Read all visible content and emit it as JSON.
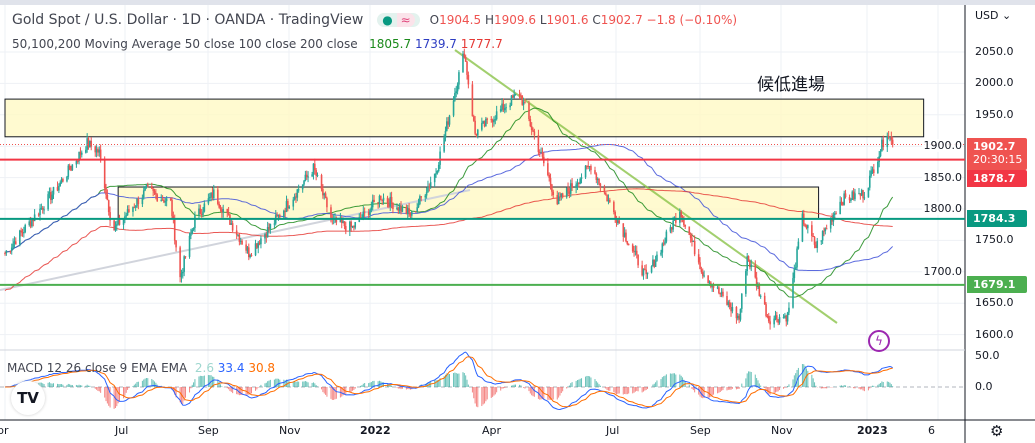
{
  "header": {
    "title": "Gold Spot / U.S. Dollar · 1D · OANDA · TradingView",
    "ohlc": {
      "o_label": "O",
      "o": "1904.5",
      "h_label": "H",
      "h": "1909.6",
      "l_label": "L",
      "l": "1901.6",
      "c_label": "C",
      "c": "1902.7",
      "change": "−1.8 (−0.10%)"
    },
    "ma_label": "50,100,200 Moving Average 50 close 100 close 200 close",
    "ma_values": [
      "1805.7",
      "1739.7",
      "1777.7"
    ]
  },
  "macd": {
    "label": "MACD 12 26 close 9 EMA EMA",
    "values": [
      "2.6",
      "33.4",
      "30.8"
    ],
    "ticks": [
      "50.0",
      "0.0"
    ]
  },
  "annotation": "候低進場",
  "currency": "USD",
  "price_tags": [
    {
      "label": "1902.7",
      "sub": "20:30:15",
      "color": "#ef5350"
    },
    {
      "label": "1878.7",
      "color": "#f23645"
    },
    {
      "label": "1784.3",
      "color": "#089981"
    },
    {
      "label": "1679.1",
      "color": "#4caf50"
    }
  ],
  "chart_data": {
    "type": "candlestick",
    "symbol": "XAUUSD",
    "interval": "1D",
    "y_ticks": [
      "2050.0",
      "2000.0",
      "1950.0",
      "1900.0",
      "1850.0",
      "1800.0",
      "1750.0",
      "1700.0",
      "1650.0",
      "1600.0"
    ],
    "ylim": [
      1580,
      2080
    ],
    "x_ticks": [
      "pr",
      "Jul",
      "Sep",
      "Nov",
      "2022",
      "Apr",
      "Jul",
      "Sep",
      "Nov",
      "2023",
      "6"
    ],
    "price_path": [
      [
        "2021-04-01",
        1730
      ],
      [
        "2021-04-20",
        1780
      ],
      [
        "2021-05-10",
        1835
      ],
      [
        "2021-06-01",
        1905
      ],
      [
        "2021-06-10",
        1890
      ],
      [
        "2021-06-20",
        1765
      ],
      [
        "2021-07-15",
        1830
      ],
      [
        "2021-08-02",
        1810
      ],
      [
        "2021-08-09",
        1690
      ],
      [
        "2021-08-20",
        1785
      ],
      [
        "2021-09-03",
        1825
      ],
      [
        "2021-09-29",
        1730
      ],
      [
        "2021-10-20",
        1785
      ],
      [
        "2021-11-16",
        1865
      ],
      [
        "2021-11-30",
        1780
      ],
      [
        "2021-12-15",
        1770
      ],
      [
        "2022-01-05",
        1820
      ],
      [
        "2022-01-28",
        1790
      ],
      [
        "2022-02-15",
        1860
      ],
      [
        "2022-03-08",
        2050
      ],
      [
        "2022-03-16",
        1920
      ],
      [
        "2022-04-18",
        1985
      ],
      [
        "2022-05-16",
        1810
      ],
      [
        "2022-06-10",
        1870
      ],
      [
        "2022-07-21",
        1690
      ],
      [
        "2022-08-15",
        1800
      ],
      [
        "2022-09-01",
        1700
      ],
      [
        "2022-09-28",
        1625
      ],
      [
        "2022-10-04",
        1725
      ],
      [
        "2022-10-20",
        1625
      ],
      [
        "2022-11-03",
        1630
      ],
      [
        "2022-11-14",
        1785
      ],
      [
        "2022-11-24",
        1740
      ],
      [
        "2022-12-13",
        1815
      ],
      [
        "2022-12-30",
        1825
      ],
      [
        "2023-01-16",
        1925
      ],
      [
        "2023-01-20",
        1902.7
      ]
    ],
    "moving_averages": [
      {
        "name": "MA 50",
        "color": "#1b8a1b"
      },
      {
        "name": "MA 100",
        "color": "#3f51d8"
      },
      {
        "name": "MA 200",
        "color": "#e53935"
      }
    ],
    "horizontal_levels": [
      {
        "price": 1878.7,
        "color": "#f23645"
      },
      {
        "price": 1784.3,
        "color": "#089981"
      },
      {
        "price": 1679.1,
        "color": "#4caf50"
      }
    ],
    "zones": [
      {
        "from": 1915,
        "to": 1975,
        "start": "2021-04-01",
        "end": "2023-02-12"
      },
      {
        "from": 1784,
        "to": 1835,
        "start": "2021-06-24",
        "end": "2022-11-26"
      }
    ],
    "colors": {
      "up": "#26a69a",
      "down": "#ef5350",
      "zone": "#fff9c4"
    }
  }
}
